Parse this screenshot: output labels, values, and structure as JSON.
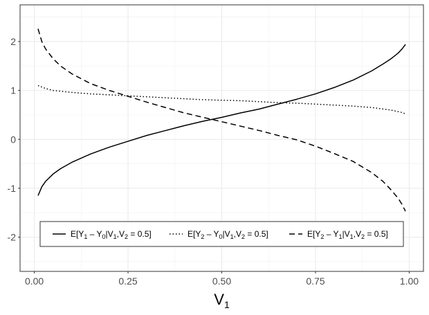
{
  "chart_data": {
    "type": "line",
    "title": "",
    "xlabel": "V",
    "xlabel_sub": "1",
    "ylabel": "",
    "xlim": [
      -0.038,
      1.038
    ],
    "ylim": [
      -2.7,
      2.75
    ],
    "x_ticks": [
      0,
      0.25,
      0.5,
      0.75,
      1
    ],
    "x_tick_labels": [
      "0.00",
      "0.25",
      "0.50",
      "0.75",
      "1.00"
    ],
    "y_ticks": [
      -2,
      -1,
      0,
      1,
      2
    ],
    "y_tick_labels": [
      "-2",
      "-1",
      "0",
      "1",
      "2"
    ],
    "grid": true,
    "legend_position": "bottom-inside",
    "series": [
      {
        "legend": [
          "E[Y",
          "1",
          " – Y",
          "0",
          "|V",
          "1",
          ",V",
          "2",
          " = 0.5]"
        ],
        "linestyle": "solid",
        "x": [
          0.01,
          0.02,
          0.03,
          0.05,
          0.07,
          0.1,
          0.15,
          0.2,
          0.25,
          0.3,
          0.35,
          0.4,
          0.45,
          0.5,
          0.55,
          0.6,
          0.65,
          0.7,
          0.75,
          0.8,
          0.85,
          0.9,
          0.93,
          0.95,
          0.97,
          0.98,
          0.99
        ],
        "y": [
          -1.15,
          -0.97,
          -0.86,
          -0.71,
          -0.6,
          -0.47,
          -0.3,
          -0.16,
          -0.04,
          0.08,
          0.18,
          0.28,
          0.37,
          0.45,
          0.54,
          0.62,
          0.72,
          0.82,
          0.93,
          1.06,
          1.21,
          1.4,
          1.54,
          1.64,
          1.76,
          1.84,
          1.94
        ]
      },
      {
        "legend": [
          "E[Y",
          "2",
          " – Y",
          "0",
          "|V",
          "1",
          ",V",
          "2",
          " = 0.5]"
        ],
        "linestyle": "dotted",
        "x": [
          0.01,
          0.03,
          0.05,
          0.1,
          0.15,
          0.2,
          0.25,
          0.3,
          0.35,
          0.4,
          0.45,
          0.5,
          0.55,
          0.6,
          0.65,
          0.7,
          0.75,
          0.8,
          0.85,
          0.9,
          0.95,
          0.98,
          0.99
        ],
        "y": [
          1.1,
          1.04,
          1.0,
          0.96,
          0.93,
          0.91,
          0.89,
          0.87,
          0.85,
          0.83,
          0.81,
          0.8,
          0.79,
          0.77,
          0.75,
          0.74,
          0.72,
          0.7,
          0.68,
          0.65,
          0.6,
          0.55,
          0.52
        ]
      },
      {
        "legend": [
          "E[Y",
          "2",
          " – Y",
          "1",
          "|V",
          "1",
          ",V",
          "2",
          " = 0.5]"
        ],
        "linestyle": "dashed",
        "x": [
          0.01,
          0.02,
          0.03,
          0.05,
          0.07,
          0.1,
          0.15,
          0.2,
          0.25,
          0.3,
          0.35,
          0.4,
          0.45,
          0.5,
          0.55,
          0.6,
          0.65,
          0.7,
          0.75,
          0.8,
          0.85,
          0.9,
          0.93,
          0.95,
          0.97,
          0.98,
          0.99
        ],
        "y": [
          2.26,
          2.0,
          1.85,
          1.65,
          1.5,
          1.34,
          1.14,
          1.0,
          0.88,
          0.76,
          0.65,
          0.54,
          0.45,
          0.36,
          0.27,
          0.18,
          0.08,
          -0.01,
          -0.14,
          -0.29,
          -0.45,
          -0.68,
          -0.86,
          -1.02,
          -1.2,
          -1.32,
          -1.47
        ]
      }
    ]
  }
}
